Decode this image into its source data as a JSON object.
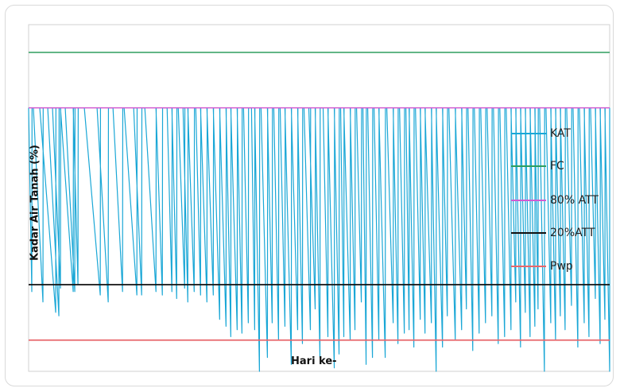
{
  "chart_data": {
    "type": "line",
    "title": "",
    "xlabel": "Hari ke-",
    "ylabel": "Kadar Air Tanah (%)",
    "xlim": [
      0,
      365
    ],
    "ylim": [
      0,
      100
    ],
    "grid": false,
    "legend_position": "right",
    "series": [
      {
        "name": "KAT",
        "color": "#1aa7d6",
        "drydown_events": [
          [
            0,
            2,
            23
          ],
          [
            3,
            6,
            20
          ],
          [
            7,
            10,
            17
          ],
          [
            12,
            7,
            16
          ],
          [
            15,
            5,
            24
          ],
          [
            20,
            8,
            23
          ],
          [
            23,
            6,
            23
          ],
          [
            28,
            3,
            25
          ],
          [
            35,
            10,
            22
          ],
          [
            43,
            7,
            20
          ],
          [
            53,
            6,
            23
          ],
          [
            60,
            8,
            22
          ],
          [
            66,
            5,
            22
          ],
          [
            73,
            7,
            23
          ],
          [
            80,
            4,
            22
          ],
          [
            87,
            3,
            23
          ],
          [
            90,
            3,
            21
          ],
          [
            94,
            4,
            24
          ],
          [
            97,
            3,
            20
          ],
          [
            100,
            4,
            23
          ],
          [
            105,
            3,
            22
          ],
          [
            108,
            4,
            20
          ],
          [
            112,
            4,
            22
          ],
          [
            116,
            4,
            15
          ],
          [
            120,
            4,
            13
          ],
          [
            124,
            3,
            10
          ],
          [
            127,
            4,
            12
          ],
          [
            131,
            3,
            11
          ],
          [
            135,
            3,
            14
          ],
          [
            140,
            2,
            12
          ],
          [
            142,
            3,
            0
          ],
          [
            146,
            4,
            4
          ],
          [
            150,
            3,
            14
          ],
          [
            154,
            3,
            9
          ],
          [
            158,
            3,
            13
          ],
          [
            161,
            4,
            2
          ],
          [
            165,
            4,
            12
          ],
          [
            169,
            3,
            8
          ],
          [
            173,
            4,
            12
          ],
          [
            176,
            4,
            18
          ],
          [
            180,
            3,
            4
          ],
          [
            185,
            3,
            10
          ],
          [
            188,
            4,
            1
          ],
          [
            192,
            3,
            5
          ],
          [
            196,
            2,
            10
          ],
          [
            198,
            4,
            9
          ],
          [
            202,
            3,
            12
          ],
          [
            206,
            3,
            20
          ],
          [
            210,
            2,
            2
          ],
          [
            213,
            3,
            4
          ],
          [
            217,
            3,
            9
          ],
          [
            220,
            4,
            4
          ],
          [
            225,
            4,
            14
          ],
          [
            229,
            3,
            8
          ],
          [
            233,
            3,
            11
          ],
          [
            237,
            2,
            12
          ],
          [
            239,
            3,
            7
          ],
          [
            243,
            3,
            15
          ],
          [
            246,
            3,
            11
          ],
          [
            249,
            4,
            14
          ],
          [
            253,
            3,
            0
          ],
          [
            256,
            4,
            7
          ],
          [
            260,
            3,
            16
          ],
          [
            264,
            4,
            9
          ],
          [
            268,
            4,
            12
          ],
          [
            272,
            3,
            18
          ],
          [
            276,
            3,
            6
          ],
          [
            280,
            3,
            11
          ],
          [
            284,
            3,
            14
          ],
          [
            288,
            3,
            16
          ],
          [
            292,
            3,
            8
          ],
          [
            296,
            3,
            10
          ],
          [
            300,
            3,
            12
          ],
          [
            303,
            3,
            20
          ],
          [
            306,
            3,
            7
          ],
          [
            309,
            3,
            17
          ],
          [
            312,
            3,
            10
          ],
          [
            315,
            3,
            13
          ],
          [
            318,
            2,
            18
          ],
          [
            321,
            3,
            0
          ],
          [
            325,
            3,
            14
          ],
          [
            328,
            3,
            9
          ],
          [
            331,
            3,
            16
          ],
          [
            334,
            3,
            12
          ],
          [
            338,
            3,
            19
          ],
          [
            342,
            3,
            7
          ],
          [
            346,
            3,
            14
          ],
          [
            349,
            3,
            10
          ],
          [
            353,
            3,
            21
          ],
          [
            356,
            3,
            8
          ],
          [
            359,
            3,
            15
          ],
          [
            362,
            3,
            0
          ]
        ]
      },
      {
        "name": "FC",
        "color": "#2e9e5e",
        "value": 92
      },
      {
        "name": "80% ATT",
        "color": "#d15bd1",
        "value": 76
      },
      {
        "name": "20%ATT",
        "color": "#111111",
        "value": 25
      },
      {
        "name": "Pwp",
        "color": "#e8666b",
        "value": 9
      }
    ]
  }
}
